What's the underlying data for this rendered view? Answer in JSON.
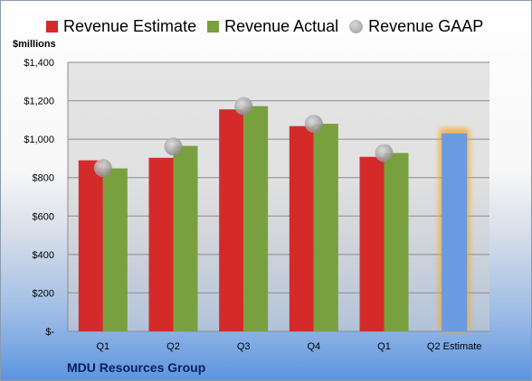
{
  "unit_label": "$millions",
  "company": "MDU Resources Group",
  "colors": {
    "estimate": "#d42a2a",
    "actual": "#79a03e",
    "gaap": "#a8a8a8",
    "projected": "#6a9be0",
    "highlight": "#f5a623"
  },
  "chart_data": {
    "type": "bar",
    "categories": [
      "Q1",
      "Q2",
      "Q3",
      "Q4",
      "Q1",
      "Q2 Estimate"
    ],
    "series": [
      {
        "name": "Revenue Estimate",
        "values": [
          890,
          903,
          1155,
          1068,
          908,
          null
        ]
      },
      {
        "name": "Revenue Actual",
        "values": [
          848,
          965,
          1172,
          1080,
          928,
          null
        ]
      },
      {
        "name": "Revenue GAAP",
        "values": [
          850,
          962,
          1172,
          1080,
          928,
          null
        ]
      }
    ],
    "projected": {
      "category": "Q2 Estimate",
      "value": 1030
    },
    "y_ticks": [
      "$-",
      "$200",
      "$400",
      "$600",
      "$800",
      "$1,000",
      "$1,200",
      "$1,400"
    ],
    "ylim": [
      0,
      1400
    ],
    "grid": true,
    "legend_position": "top"
  }
}
